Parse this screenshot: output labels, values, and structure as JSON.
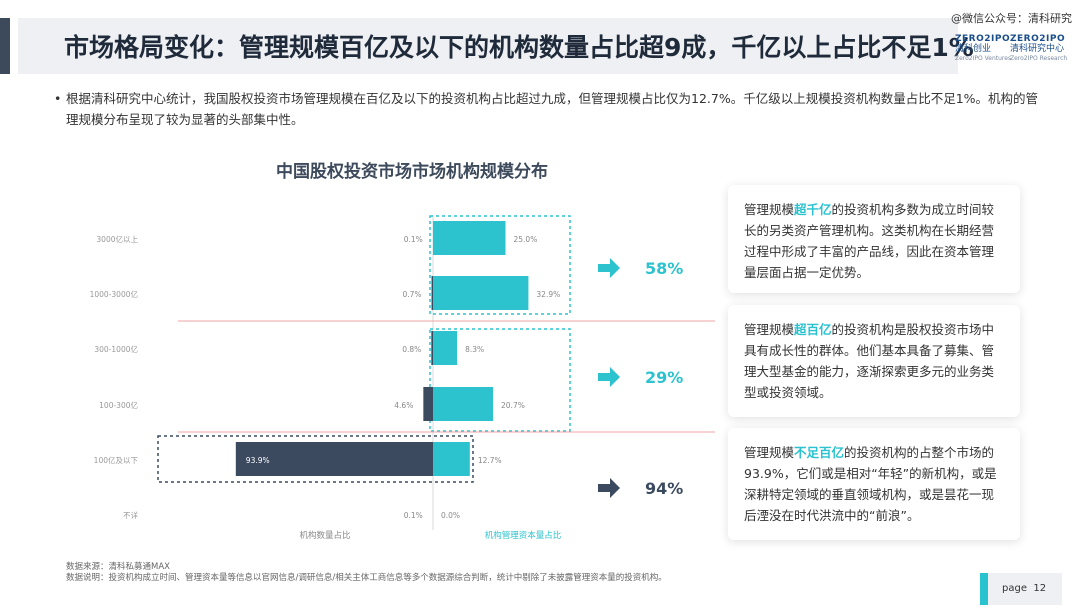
{
  "header": {
    "title": "市场格局变化：管理规模百亿及以下的机构数量占比超9成，千亿以上占比不足1%",
    "wechat": "@微信公众号：清科研究",
    "logo1": {
      "top": "ZERO2IPO",
      "mid": "清科创业",
      "bot": "Zero2IPO Ventures"
    },
    "logo2": {
      "top": "ZERO2IPO",
      "mid": "清科研究中心",
      "bot": "Zero2IPO Research"
    }
  },
  "bullet": "根据清科研究中心统计，我国股权投资市场管理规模在百亿及以下的投资机构占比超过九成，但管理规模占比仅为12.7%。千亿级以上规模投资机构数量占比不足1%。机构的管理规模分布呈现了较为显著的头部集中性。",
  "colors": {
    "teal": "#2cc3cf",
    "navy": "#3c4a60",
    "red": "#f0a5a5"
  },
  "chart_data": {
    "type": "bar",
    "title": "中国股权投资市场市场机构规模分布",
    "categories": [
      "3000亿以上",
      "1000-3000亿",
      "300-1000亿",
      "100-300亿",
      "100亿及以下",
      "不详"
    ],
    "series": [
      {
        "name": "机构数量占比",
        "values": [
          0.1,
          0.7,
          0.8,
          4.6,
          93.9,
          0.1
        ],
        "labels": [
          "0.1%",
          "0.7%",
          "0.8%",
          "4.6%",
          "93.9%",
          "0.1%"
        ]
      },
      {
        "name": "机构管理资本量占比",
        "values": [
          25.0,
          32.9,
          8.3,
          20.7,
          12.7,
          0.0
        ],
        "labels": [
          "25.0%",
          "32.9%",
          "8.3%",
          "20.7%",
          "12.7%",
          "0.0%"
        ]
      }
    ],
    "groups": [
      {
        "label": "58%",
        "icon": "arrow-right-icon"
      },
      {
        "label": "29%",
        "icon": "arrow-right-icon"
      },
      {
        "label": "94%",
        "icon": "arrow-right-icon"
      }
    ]
  },
  "cards": [
    {
      "pre": "管理规模",
      "hl": "超千亿",
      "post": "的投资机构多数为成立时间较长的另类资产管理机构。这类机构在长期经营过程中形成了丰富的产品线，因此在资本管理量层面占据一定优势。"
    },
    {
      "pre": "管理规模",
      "hl": "超百亿",
      "post": "的投资机构是股权投资市场中具有成长性的群体。他们基本具备了募集、管理大型基金的能力，逐渐探索更多元的业务类型或投资领域。"
    },
    {
      "pre": "管理规模",
      "hl": "不足百亿",
      "post": "的投资机构的占整个市场的93.9%，它们或是相对“年轻”的新机构，或是深耕特定领域的垂直领域机构，或是昙花一现后湮没在时代洪流中的“前浪”。"
    }
  ],
  "source": {
    "line1": "数据来源：清科私募通MAX",
    "line2": "数据说明：投资机构成立时间、管理资本量等信息以官网信息/调研信息/相关主体工商信息等多个数据源综合判断，统计中剔除了未披露管理资本量的投资机构。"
  },
  "page": {
    "label": "page",
    "number": "12"
  }
}
